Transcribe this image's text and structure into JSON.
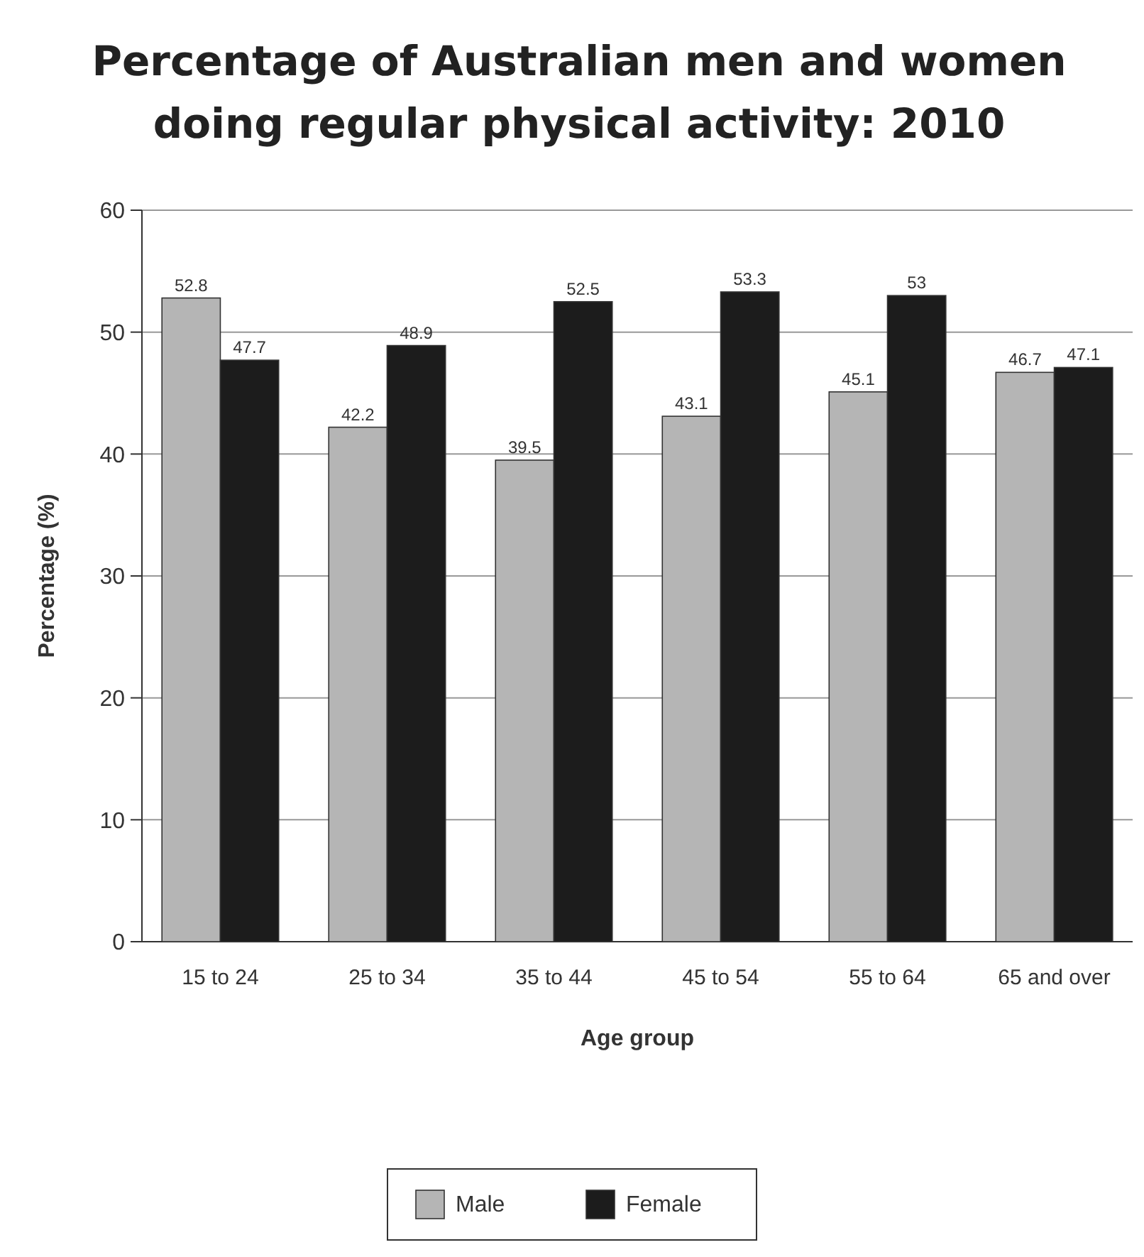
{
  "chart_data": {
    "type": "bar",
    "title": "Percentage of Australian men and women doing regular physical activity: 2010",
    "xlabel": "Age group",
    "ylabel": "Percentage (%)",
    "categories": [
      "15 to 24",
      "25 to 34",
      "35 to 44",
      "45 to 54",
      "55 to 64",
      "65 and over"
    ],
    "series": [
      {
        "name": "Male",
        "color": "#b5b5b5",
        "values": [
          52.8,
          42.2,
          39.5,
          43.1,
          45.1,
          46.7
        ]
      },
      {
        "name": "Female",
        "color": "#1c1c1c",
        "values": [
          47.7,
          48.9,
          52.5,
          53.3,
          53,
          47.1
        ]
      }
    ],
    "ylim": [
      0,
      60
    ],
    "yticks": [
      0,
      10,
      20,
      30,
      40,
      50,
      60
    ],
    "grid": "y",
    "legend": "bottom",
    "data_labels": true
  }
}
